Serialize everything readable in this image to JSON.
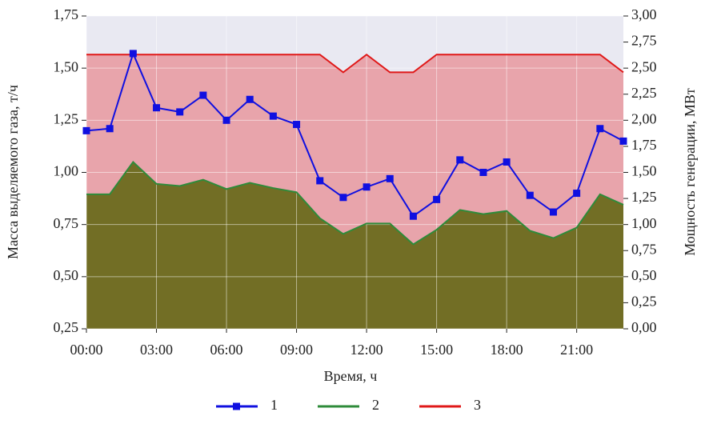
{
  "chart_data": {
    "type": "line",
    "xlabel": "Время, ч",
    "ylabel": "Масса выделяемого газа, т/ч",
    "y2label": "Мощность генерации, МВт",
    "x": [
      0,
      1,
      2,
      3,
      4,
      5,
      6,
      7,
      8,
      9,
      10,
      11,
      12,
      13,
      14,
      15,
      16,
      17,
      18,
      19,
      20,
      21,
      22,
      23
    ],
    "xlim": [
      0,
      23
    ],
    "xticks": [
      {
        "value": 0,
        "label": "00:00"
      },
      {
        "value": 3,
        "label": "03:00"
      },
      {
        "value": 6,
        "label": "06:00"
      },
      {
        "value": 9,
        "label": "09:00"
      },
      {
        "value": 12,
        "label": "12:00"
      },
      {
        "value": 15,
        "label": "15:00"
      },
      {
        "value": 18,
        "label": "18:00"
      },
      {
        "value": 21,
        "label": "21:00"
      }
    ],
    "ylim": [
      0.25,
      1.75
    ],
    "yticks": [
      {
        "value": 0.25,
        "label": "0,25"
      },
      {
        "value": 0.5,
        "label": "0,50"
      },
      {
        "value": 0.75,
        "label": "0,75"
      },
      {
        "value": 1,
        "label": "1,00"
      },
      {
        "value": 1.25,
        "label": "1,25"
      },
      {
        "value": 1.5,
        "label": "1,50"
      },
      {
        "value": 1.75,
        "label": "1,75"
      }
    ],
    "y2lim": [
      0,
      3
    ],
    "y2ticks": [
      {
        "value": 0,
        "label": "0,00"
      },
      {
        "value": 0.25,
        "label": "0,25"
      },
      {
        "value": 0.5,
        "label": "0,50"
      },
      {
        "value": 0.75,
        "label": "0,75"
      },
      {
        "value": 1,
        "label": "1,00"
      },
      {
        "value": 1.25,
        "label": "1,25"
      },
      {
        "value": 1.5,
        "label": "1,50"
      },
      {
        "value": 1.75,
        "label": "1,75"
      },
      {
        "value": 2,
        "label": "2,00"
      },
      {
        "value": 2.25,
        "label": "2,25"
      },
      {
        "value": 2.5,
        "label": "2,50"
      },
      {
        "value": 2.75,
        "label": "2,75"
      },
      {
        "value": 3,
        "label": "3,00"
      }
    ],
    "grid": true,
    "legend": "bottom",
    "series": [
      {
        "name": "1",
        "color": "#1010e0",
        "style": "line-markers",
        "values": [
          1.2,
          1.21,
          1.57,
          1.31,
          1.29,
          1.37,
          1.25,
          1.35,
          1.27,
          1.23,
          0.96,
          0.88,
          0.93,
          0.97,
          0.79,
          0.87,
          1.06,
          1.0,
          1.05,
          0.89,
          0.81,
          0.9,
          1.21,
          1.15
        ]
      },
      {
        "name": "2",
        "color": "#2e8b3a",
        "fill": "#6b6b1e",
        "style": "area",
        "axis": "y2",
        "values": [
          1.29,
          1.29,
          1.6,
          1.39,
          1.37,
          1.43,
          1.34,
          1.4,
          1.35,
          1.31,
          1.06,
          0.91,
          1.01,
          1.01,
          0.81,
          0.95,
          1.14,
          1.1,
          1.13,
          0.94,
          0.87,
          0.97,
          1.29,
          1.19
        ]
      },
      {
        "name": "3",
        "color": "#e01818",
        "fill": "#e8a0a6",
        "style": "area",
        "axis": "y2",
        "values": [
          2.63,
          2.63,
          2.63,
          2.63,
          2.63,
          2.63,
          2.63,
          2.63,
          2.63,
          2.63,
          2.63,
          2.46,
          2.63,
          2.46,
          2.46,
          2.63,
          2.63,
          2.63,
          2.63,
          2.63,
          2.63,
          2.63,
          2.63,
          2.46
        ]
      }
    ]
  }
}
